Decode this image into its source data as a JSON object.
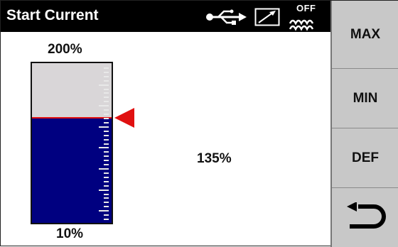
{
  "header": {
    "title": "Start Current",
    "status_icons": [
      "usb-icon",
      "external-signal-icon",
      "off-level-icon"
    ],
    "off_text": "OFF"
  },
  "gauge": {
    "max_label": "200%",
    "min_label": "10%",
    "value_label": "135%",
    "min": 10,
    "max": 200,
    "value": 135,
    "fill_color": "#000080",
    "empty_color": "#d9d6d8",
    "marker_color": "#e01010"
  },
  "buttons": {
    "max": "MAX",
    "min": "MIN",
    "def": "DEF",
    "back_icon": "return-arrow-icon"
  }
}
